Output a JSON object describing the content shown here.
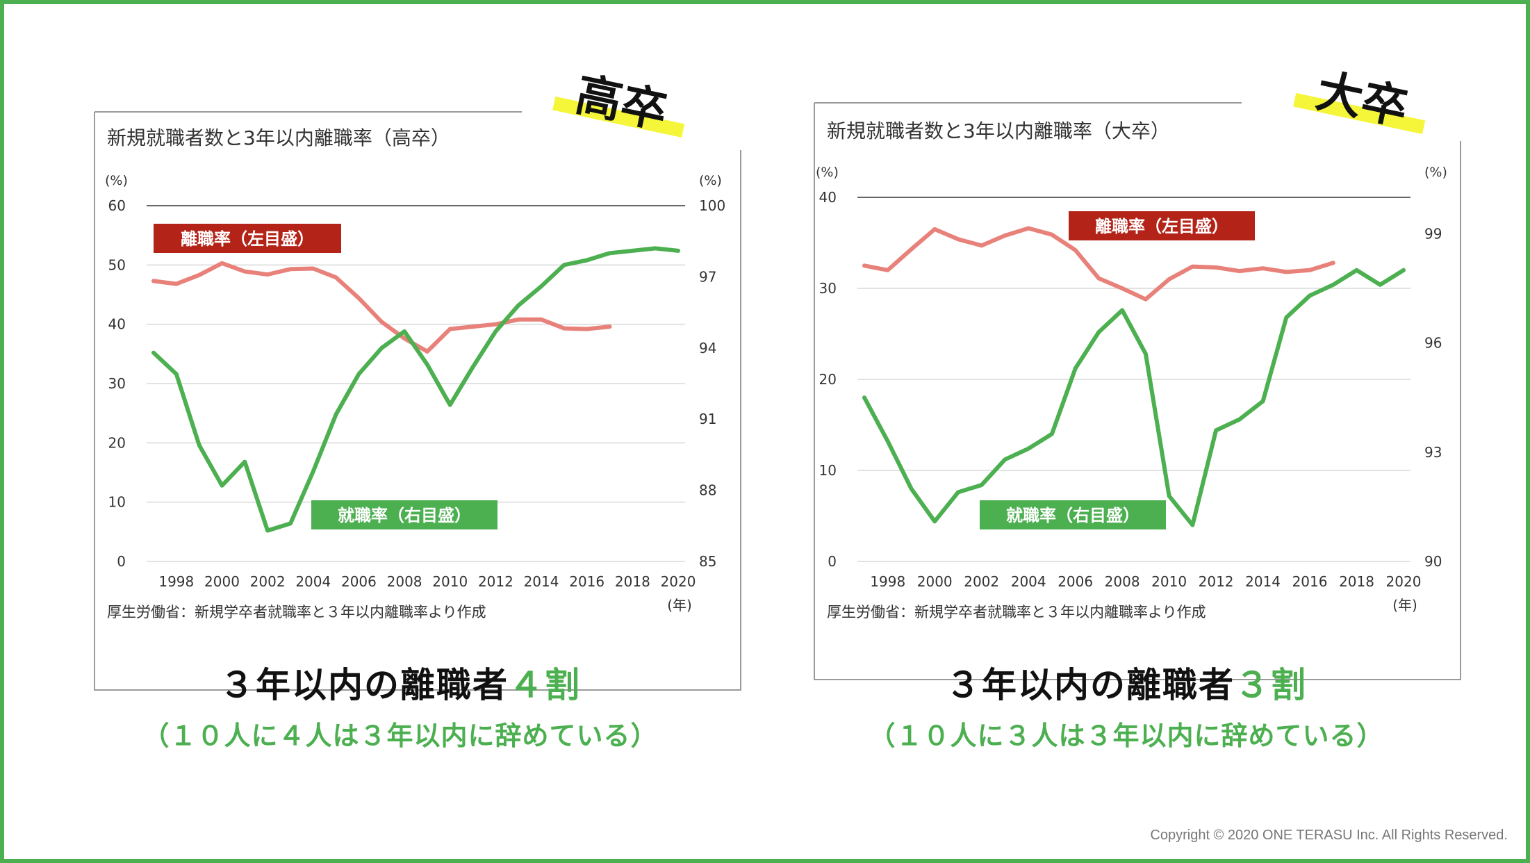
{
  "colors": {
    "frame": "#4caf50",
    "retention_line": "#e8817a",
    "employment_line": "#4caf50",
    "retention_label_bg": "#b42318",
    "employment_label_bg": "#4caf50",
    "highlight": "#f5f53a",
    "accent_text": "#4caf50"
  },
  "chart_data": [
    {
      "type": "line",
      "badge": "高卒",
      "title": "新規就職者数と3年以内離職率（高卒）",
      "ylabel_left": "(%)",
      "ylabel_right": "(%)",
      "xlabel": "(年)",
      "ylim_left": [
        0,
        60
      ],
      "yticks_left": [
        "0",
        "10",
        "20",
        "30",
        "40",
        "50",
        "60"
      ],
      "ylim_right": [
        85,
        100
      ],
      "yticks_right": [
        "85",
        "88",
        "91",
        "94",
        "97",
        "100"
      ],
      "xlim": [
        1997,
        2020
      ],
      "xticks": [
        "1998",
        "2000",
        "2002",
        "2004",
        "2006",
        "2008",
        "2010",
        "2012",
        "2014",
        "2016",
        "2018",
        "2020"
      ],
      "source": "厚生労働省：新規学卒者就職率と３年以内離職率より作成",
      "series": [
        {
          "name": "離職率（左目盛）",
          "axis": "left",
          "x": [
            1997,
            1998,
            1999,
            2000,
            2001,
            2002,
            2003,
            2004,
            2005,
            2006,
            2007,
            2008,
            2009,
            2010,
            2011,
            2012,
            2013,
            2014,
            2015,
            2016,
            2017
          ],
          "values": [
            47.3,
            46.8,
            48.3,
            50.3,
            48.9,
            48.4,
            49.3,
            49.4,
            47.9,
            44.4,
            40.4,
            37.6,
            35.4,
            39.2,
            39.6,
            40.0,
            40.8,
            40.8,
            39.3,
            39.2,
            39.6
          ]
        },
        {
          "name": "就職率（右目盛）",
          "axis": "right",
          "x": [
            1997,
            1998,
            1999,
            2000,
            2001,
            2002,
            2003,
            2004,
            2005,
            2006,
            2007,
            2008,
            2009,
            2010,
            2011,
            2012,
            2013,
            2014,
            2015,
            2016,
            2017,
            2018,
            2019,
            2020
          ],
          "values": [
            93.8,
            92.9,
            89.9,
            88.2,
            89.2,
            86.3,
            86.6,
            88.8,
            91.2,
            92.9,
            94.0,
            94.7,
            93.3,
            91.6,
            93.2,
            94.7,
            95.8,
            96.6,
            97.5,
            97.7,
            98.0,
            98.1,
            98.2,
            98.1
          ]
        }
      ]
    },
    {
      "type": "line",
      "badge": "大卒",
      "title": "新規就職者数と3年以内離職率（大卒）",
      "ylabel_left": "(%)",
      "ylabel_right": "(%)",
      "xlabel": "(年)",
      "ylim_left": [
        0,
        40
      ],
      "yticks_left": [
        "0",
        "10",
        "20",
        "30",
        "40"
      ],
      "ylim_right": [
        90,
        100
      ],
      "yticks_right": [
        "90",
        "93",
        "96",
        "99"
      ],
      "xlim": [
        1997,
        2020
      ],
      "xticks": [
        "1998",
        "2000",
        "2002",
        "2004",
        "2006",
        "2008",
        "2010",
        "2012",
        "2014",
        "2016",
        "2018",
        "2020"
      ],
      "source": "厚生労働省：新規学卒者就職率と３年以内離職率より作成",
      "series": [
        {
          "name": "離職率（左目盛）",
          "axis": "left",
          "x": [
            1997,
            1998,
            1999,
            2000,
            2001,
            2002,
            2003,
            2004,
            2005,
            2006,
            2007,
            2008,
            2009,
            2010,
            2011,
            2012,
            2013,
            2014,
            2015,
            2016,
            2017
          ],
          "values": [
            32.5,
            32.0,
            34.3,
            36.5,
            35.4,
            34.7,
            35.8,
            36.6,
            35.9,
            34.2,
            31.1,
            30.0,
            28.8,
            31.0,
            32.4,
            32.3,
            31.9,
            32.2,
            31.8,
            32.0,
            32.8
          ]
        },
        {
          "name": "就職率（右目盛）",
          "axis": "right",
          "x": [
            1997,
            1998,
            1999,
            2000,
            2001,
            2002,
            2003,
            2004,
            2005,
            2006,
            2007,
            2008,
            2009,
            2010,
            2011,
            2012,
            2013,
            2014,
            2015,
            2016,
            2017,
            2018,
            2019,
            2020
          ],
          "values": [
            94.5,
            93.3,
            92.0,
            91.1,
            91.9,
            92.1,
            92.8,
            93.1,
            93.5,
            95.3,
            96.3,
            96.9,
            95.7,
            91.8,
            91.0,
            93.6,
            93.9,
            94.4,
            96.7,
            97.3,
            97.6,
            98.0,
            97.6,
            98.0
          ]
        }
      ]
    }
  ],
  "captions": {
    "left": {
      "main": "３年以内の離職者",
      "accent": "４割",
      "sub": "（１０人に４人は３年以内に辞めている）"
    },
    "right": {
      "main": "３年以内の離職者",
      "accent": "３割",
      "sub": "（１０人に３人は３年以内に辞めている）"
    }
  },
  "footer": {
    "copyright": "Copyright © 2020 ONE TERASU Inc. All Rights Reserved."
  }
}
